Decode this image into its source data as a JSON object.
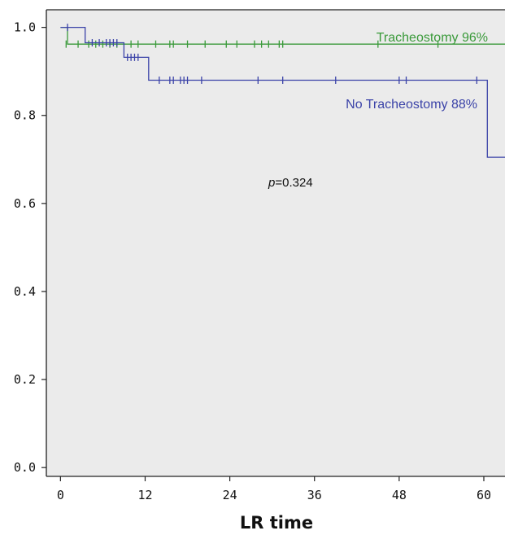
{
  "chart_data": {
    "type": "line",
    "subtype": "kaplan-meier",
    "title": "",
    "xlabel": "LR time",
    "ylabel": "",
    "xlim": [
      -2,
      63
    ],
    "ylim": [
      -0.02,
      1.04
    ],
    "xticks": [
      0,
      12,
      24,
      36,
      48,
      60
    ],
    "yticks": [
      0.0,
      0.2,
      0.4,
      0.6,
      0.8,
      1.0
    ],
    "xtick_labels": [
      "0",
      "12",
      "24",
      "36",
      "48",
      "60"
    ],
    "ytick_labels": [
      "0.0",
      "0.2",
      "0.4",
      "0.6",
      "0.8",
      "1.0"
    ],
    "grid": false,
    "background": "#ebebeb",
    "annotation": {
      "italic": "p",
      "text": "=0.324"
    },
    "series": [
      {
        "name": "Tracheostomy",
        "label": "Tracheostomy 96%",
        "color": "#3a9a3a",
        "steps": [
          [
            0,
            1.0
          ],
          [
            1,
            1.0
          ],
          [
            1,
            0.962
          ],
          [
            63,
            0.962
          ]
        ],
        "censored": [
          [
            0.8,
            0.962
          ],
          [
            2.5,
            0.962
          ],
          [
            4,
            0.962
          ],
          [
            5,
            0.962
          ],
          [
            6,
            0.962
          ],
          [
            7,
            0.962
          ],
          [
            8,
            0.962
          ],
          [
            10,
            0.962
          ],
          [
            11,
            0.962
          ],
          [
            13.5,
            0.962
          ],
          [
            15.5,
            0.962
          ],
          [
            16,
            0.962
          ],
          [
            18,
            0.962
          ],
          [
            20.5,
            0.962
          ],
          [
            23.5,
            0.962
          ],
          [
            25,
            0.962
          ],
          [
            27.5,
            0.962
          ],
          [
            28.5,
            0.962
          ],
          [
            29.5,
            0.962
          ],
          [
            31,
            0.962
          ],
          [
            31.5,
            0.962
          ],
          [
            45,
            0.962
          ],
          [
            53.5,
            0.962
          ]
        ]
      },
      {
        "name": "No Tracheostomy",
        "label": "No Tracheostomy 88%",
        "color": "#3b43a8",
        "steps": [
          [
            0,
            1.0
          ],
          [
            3.5,
            1.0
          ],
          [
            3.5,
            0.965
          ],
          [
            9,
            0.965
          ],
          [
            9,
            0.932
          ],
          [
            12.5,
            0.932
          ],
          [
            12.5,
            0.88
          ],
          [
            60.5,
            0.88
          ],
          [
            60.5,
            0.705
          ],
          [
            63,
            0.705
          ]
        ],
        "censored": [
          [
            1,
            1.0
          ],
          [
            4.5,
            0.965
          ],
          [
            5.5,
            0.965
          ],
          [
            6.5,
            0.965
          ],
          [
            7,
            0.965
          ],
          [
            7.5,
            0.965
          ],
          [
            8,
            0.965
          ],
          [
            9.5,
            0.932
          ],
          [
            10,
            0.932
          ],
          [
            10.5,
            0.932
          ],
          [
            11,
            0.932
          ],
          [
            14,
            0.88
          ],
          [
            15.5,
            0.88
          ],
          [
            16,
            0.88
          ],
          [
            17,
            0.88
          ],
          [
            17.5,
            0.88
          ],
          [
            18,
            0.88
          ],
          [
            20,
            0.88
          ],
          [
            28,
            0.88
          ],
          [
            31.5,
            0.88
          ],
          [
            39,
            0.88
          ],
          [
            48,
            0.88
          ],
          [
            49,
            0.88
          ],
          [
            59,
            0.88
          ]
        ]
      }
    ]
  }
}
